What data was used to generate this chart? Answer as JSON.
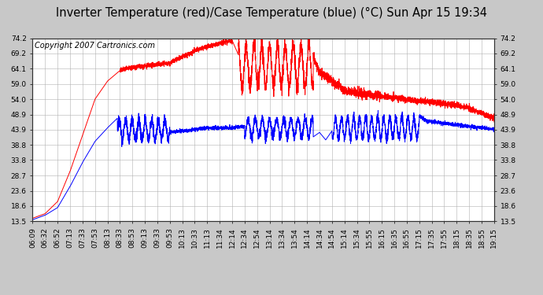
{
  "title": "Inverter Temperature (red)/Case Temperature (blue) (°C) Sun Apr 15 19:34",
  "copyright": "Copyright 2007 Cartronics.com",
  "background_color": "#c8c8c8",
  "plot_bg_color": "#ffffff",
  "yticks": [
    13.5,
    18.6,
    23.6,
    28.7,
    33.8,
    38.8,
    43.9,
    48.9,
    54.0,
    59.0,
    64.1,
    69.2,
    74.2
  ],
  "ylim": [
    13.5,
    74.2
  ],
  "xtick_labels": [
    "06:09",
    "06:32",
    "06:52",
    "07:13",
    "07:33",
    "07:53",
    "08:13",
    "08:33",
    "08:53",
    "09:13",
    "09:33",
    "09:53",
    "10:13",
    "10:33",
    "11:13",
    "11:34",
    "12:14",
    "12:34",
    "12:54",
    "13:14",
    "13:34",
    "13:54",
    "14:14",
    "14:34",
    "14:54",
    "15:14",
    "15:34",
    "15:55",
    "16:15",
    "16:35",
    "16:55",
    "17:15",
    "17:35",
    "17:55",
    "18:15",
    "18:35",
    "18:55",
    "19:15"
  ],
  "red_color": "#ff0000",
  "blue_color": "#0000ff",
  "grid_color": "#b0b0b0",
  "title_fontsize": 10.5,
  "tick_fontsize": 6.5,
  "copyright_fontsize": 7
}
